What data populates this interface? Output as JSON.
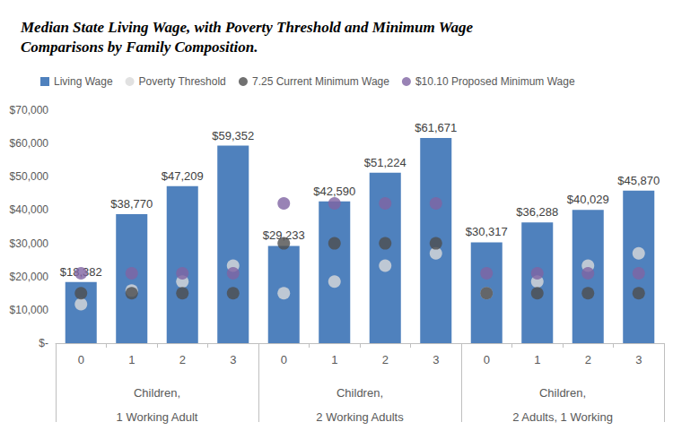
{
  "chart_data": {
    "type": "bar",
    "title": "Median State Living Wage, with Poverty Threshold and Minimum Wage\nComparisons by Family Composition.",
    "categories": [
      "0",
      "1",
      "2",
      "3",
      "0",
      "1",
      "2",
      "3",
      "0",
      "1",
      "2",
      "3"
    ],
    "group_labels": [
      "Children,\n1 Working Adult",
      "Children,\n2 Working Adults",
      "Children,\n2 Adults, 1 Working"
    ],
    "series": [
      {
        "name": "Living Wage",
        "type": "bar",
        "color": "#4f81bd",
        "values": [
          18382,
          38770,
          47209,
          59352,
          29233,
          42590,
          51224,
          61671,
          30317,
          36288,
          40029,
          45870
        ],
        "value_labels": [
          "$18,382",
          "$38,770",
          "$47,209",
          "$59,352",
          "$29,233",
          "$42,590",
          "$51,224",
          "$61,671",
          "$30,317",
          "$36,288",
          "$40,029",
          "$45,870"
        ]
      },
      {
        "name": "Poverty Threshold",
        "type": "scatter",
        "marker": "circle",
        "color": "#d9d9d9",
        "values": [
          11700,
          15800,
          18500,
          23300,
          15000,
          18500,
          23300,
          27000,
          15000,
          18500,
          23300,
          27000
        ]
      },
      {
        "name": "7.25 Current Minimum Wage",
        "type": "scatter",
        "marker": "circle",
        "color": "#4d4d4d",
        "values": [
          15000,
          15000,
          15000,
          15000,
          30000,
          30000,
          30000,
          30000,
          15000,
          15000,
          15000,
          15000
        ]
      },
      {
        "name": "$10.10 Proposed Minimum Wage",
        "type": "scatter",
        "marker": "circle",
        "color": "#8064a2",
        "values": [
          21000,
          21000,
          21000,
          21000,
          42000,
          42000,
          42000,
          42000,
          21000,
          21000,
          21000,
          21000
        ]
      }
    ],
    "ylim": [
      0,
      70000
    ],
    "yticks": [
      {
        "value": 0,
        "label": "$-"
      },
      {
        "value": 10000,
        "label": "$10,000"
      },
      {
        "value": 20000,
        "label": "$20,000"
      },
      {
        "value": 30000,
        "label": "$30,000"
      },
      {
        "value": 40000,
        "label": "$40,000"
      },
      {
        "value": 50000,
        "label": "$50,000"
      },
      {
        "value": 60000,
        "label": "$60,000"
      },
      {
        "value": 70000,
        "label": "$70,000"
      }
    ],
    "grid": false,
    "legend": "top",
    "data_labels": true
  }
}
